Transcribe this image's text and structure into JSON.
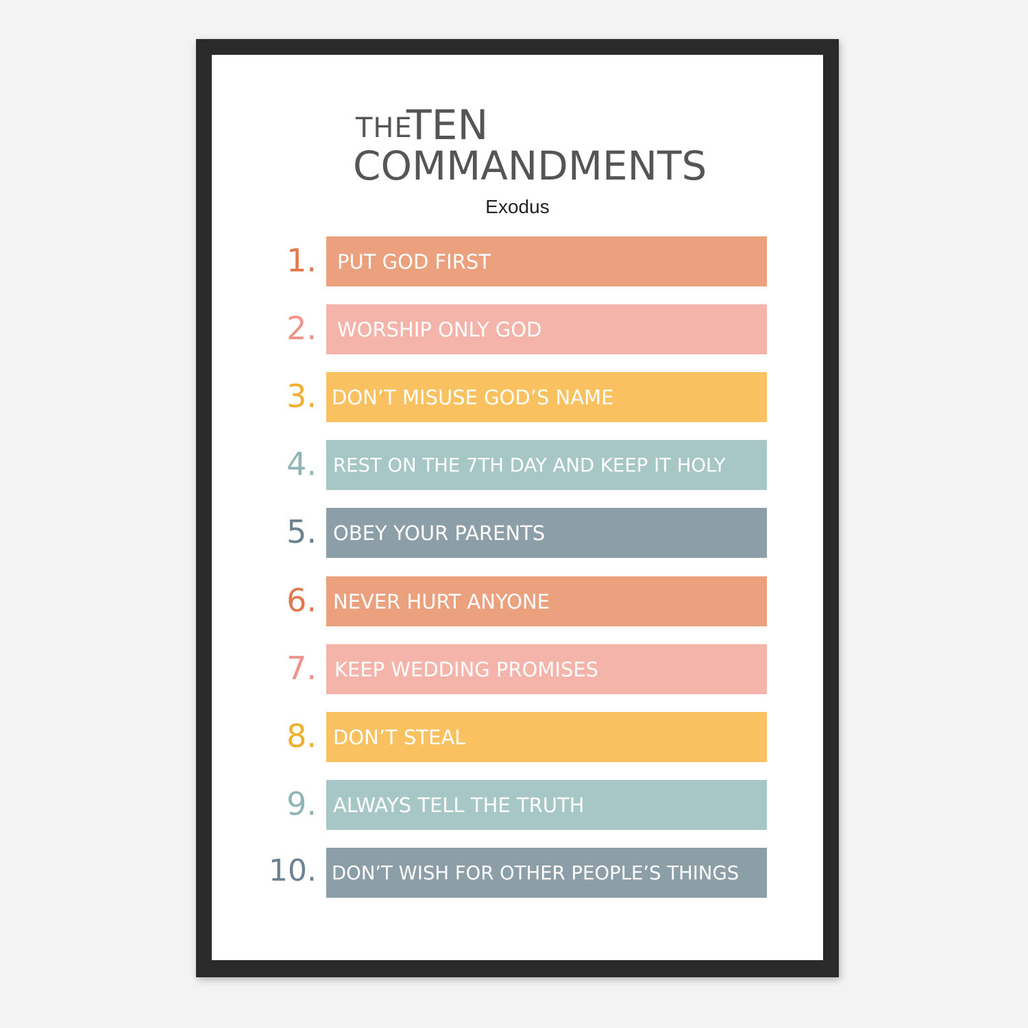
{
  "poster": {
    "title_the": "THE",
    "title_ten": "TEN",
    "title_commandments": "COMMANDMENTS",
    "subtitle": "Exodus"
  },
  "colors": {
    "orange": "#EBA07E",
    "pink": "#F5B4AA",
    "yellow": "#F9C15F",
    "teal": "#A7C7C6",
    "slate": "#8C9FA8",
    "frame": "#2A2A2A"
  },
  "commandments": [
    {
      "number": "1.",
      "text": "PUT GOD FIRST",
      "bar_color": "#EBA07E",
      "num_color": "#E07A4E"
    },
    {
      "number": "2.",
      "text": "WORSHIP ONLY GOD",
      "bar_color": "#F5B4AA",
      "num_color": "#EF928A"
    },
    {
      "number": "3.",
      "text": "DON’T MISUSE GOD’S NAME",
      "bar_color": "#F9C15F",
      "num_color": "#F2AE2D"
    },
    {
      "number": "4.",
      "text": "REST ON THE 7TH DAY AND KEEP IT HOLY",
      "bar_color": "#A7C7C6",
      "num_color": "#8FB5B6"
    },
    {
      "number": "5.",
      "text": "OBEY YOUR PARENTS",
      "bar_color": "#8C9FA8",
      "num_color": "#6D8290"
    },
    {
      "number": "6.",
      "text": "NEVER HURT ANYONE",
      "bar_color": "#EBA07E",
      "num_color": "#E07A4E"
    },
    {
      "number": "7.",
      "text": "KEEP WEDDING PROMISES",
      "bar_color": "#F5B4AA",
      "num_color": "#EF928A"
    },
    {
      "number": "8.",
      "text": "DON’T STEAL",
      "bar_color": "#F9C15F",
      "num_color": "#F2AE2D"
    },
    {
      "number": "9.",
      "text": "ALWAYS TELL THE TRUTH",
      "bar_color": "#A7C7C6",
      "num_color": "#8FB5B6"
    },
    {
      "number": "10.",
      "text": "DON’T WISH FOR OTHER PEOPLE’S THINGS",
      "bar_color": "#8C9FA8",
      "num_color": "#6D8290"
    }
  ]
}
